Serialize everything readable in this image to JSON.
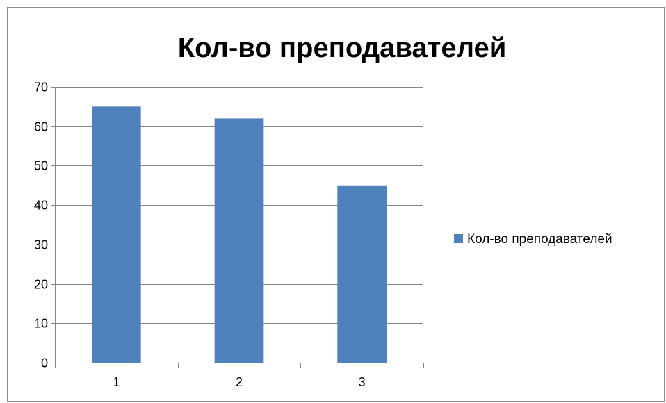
{
  "chart_data": {
    "type": "bar",
    "title": "Кол-во преподавателей",
    "categories": [
      "1",
      "2",
      "3"
    ],
    "series": [
      {
        "name": "Кол-во преподавателей",
        "values": [
          65,
          62,
          45
        ],
        "color": "#4f81bd"
      }
    ],
    "ylim": [
      0,
      70
    ],
    "yticks": [
      0,
      10,
      20,
      30,
      40,
      50,
      60,
      70
    ],
    "grid": true,
    "legend": "right"
  }
}
